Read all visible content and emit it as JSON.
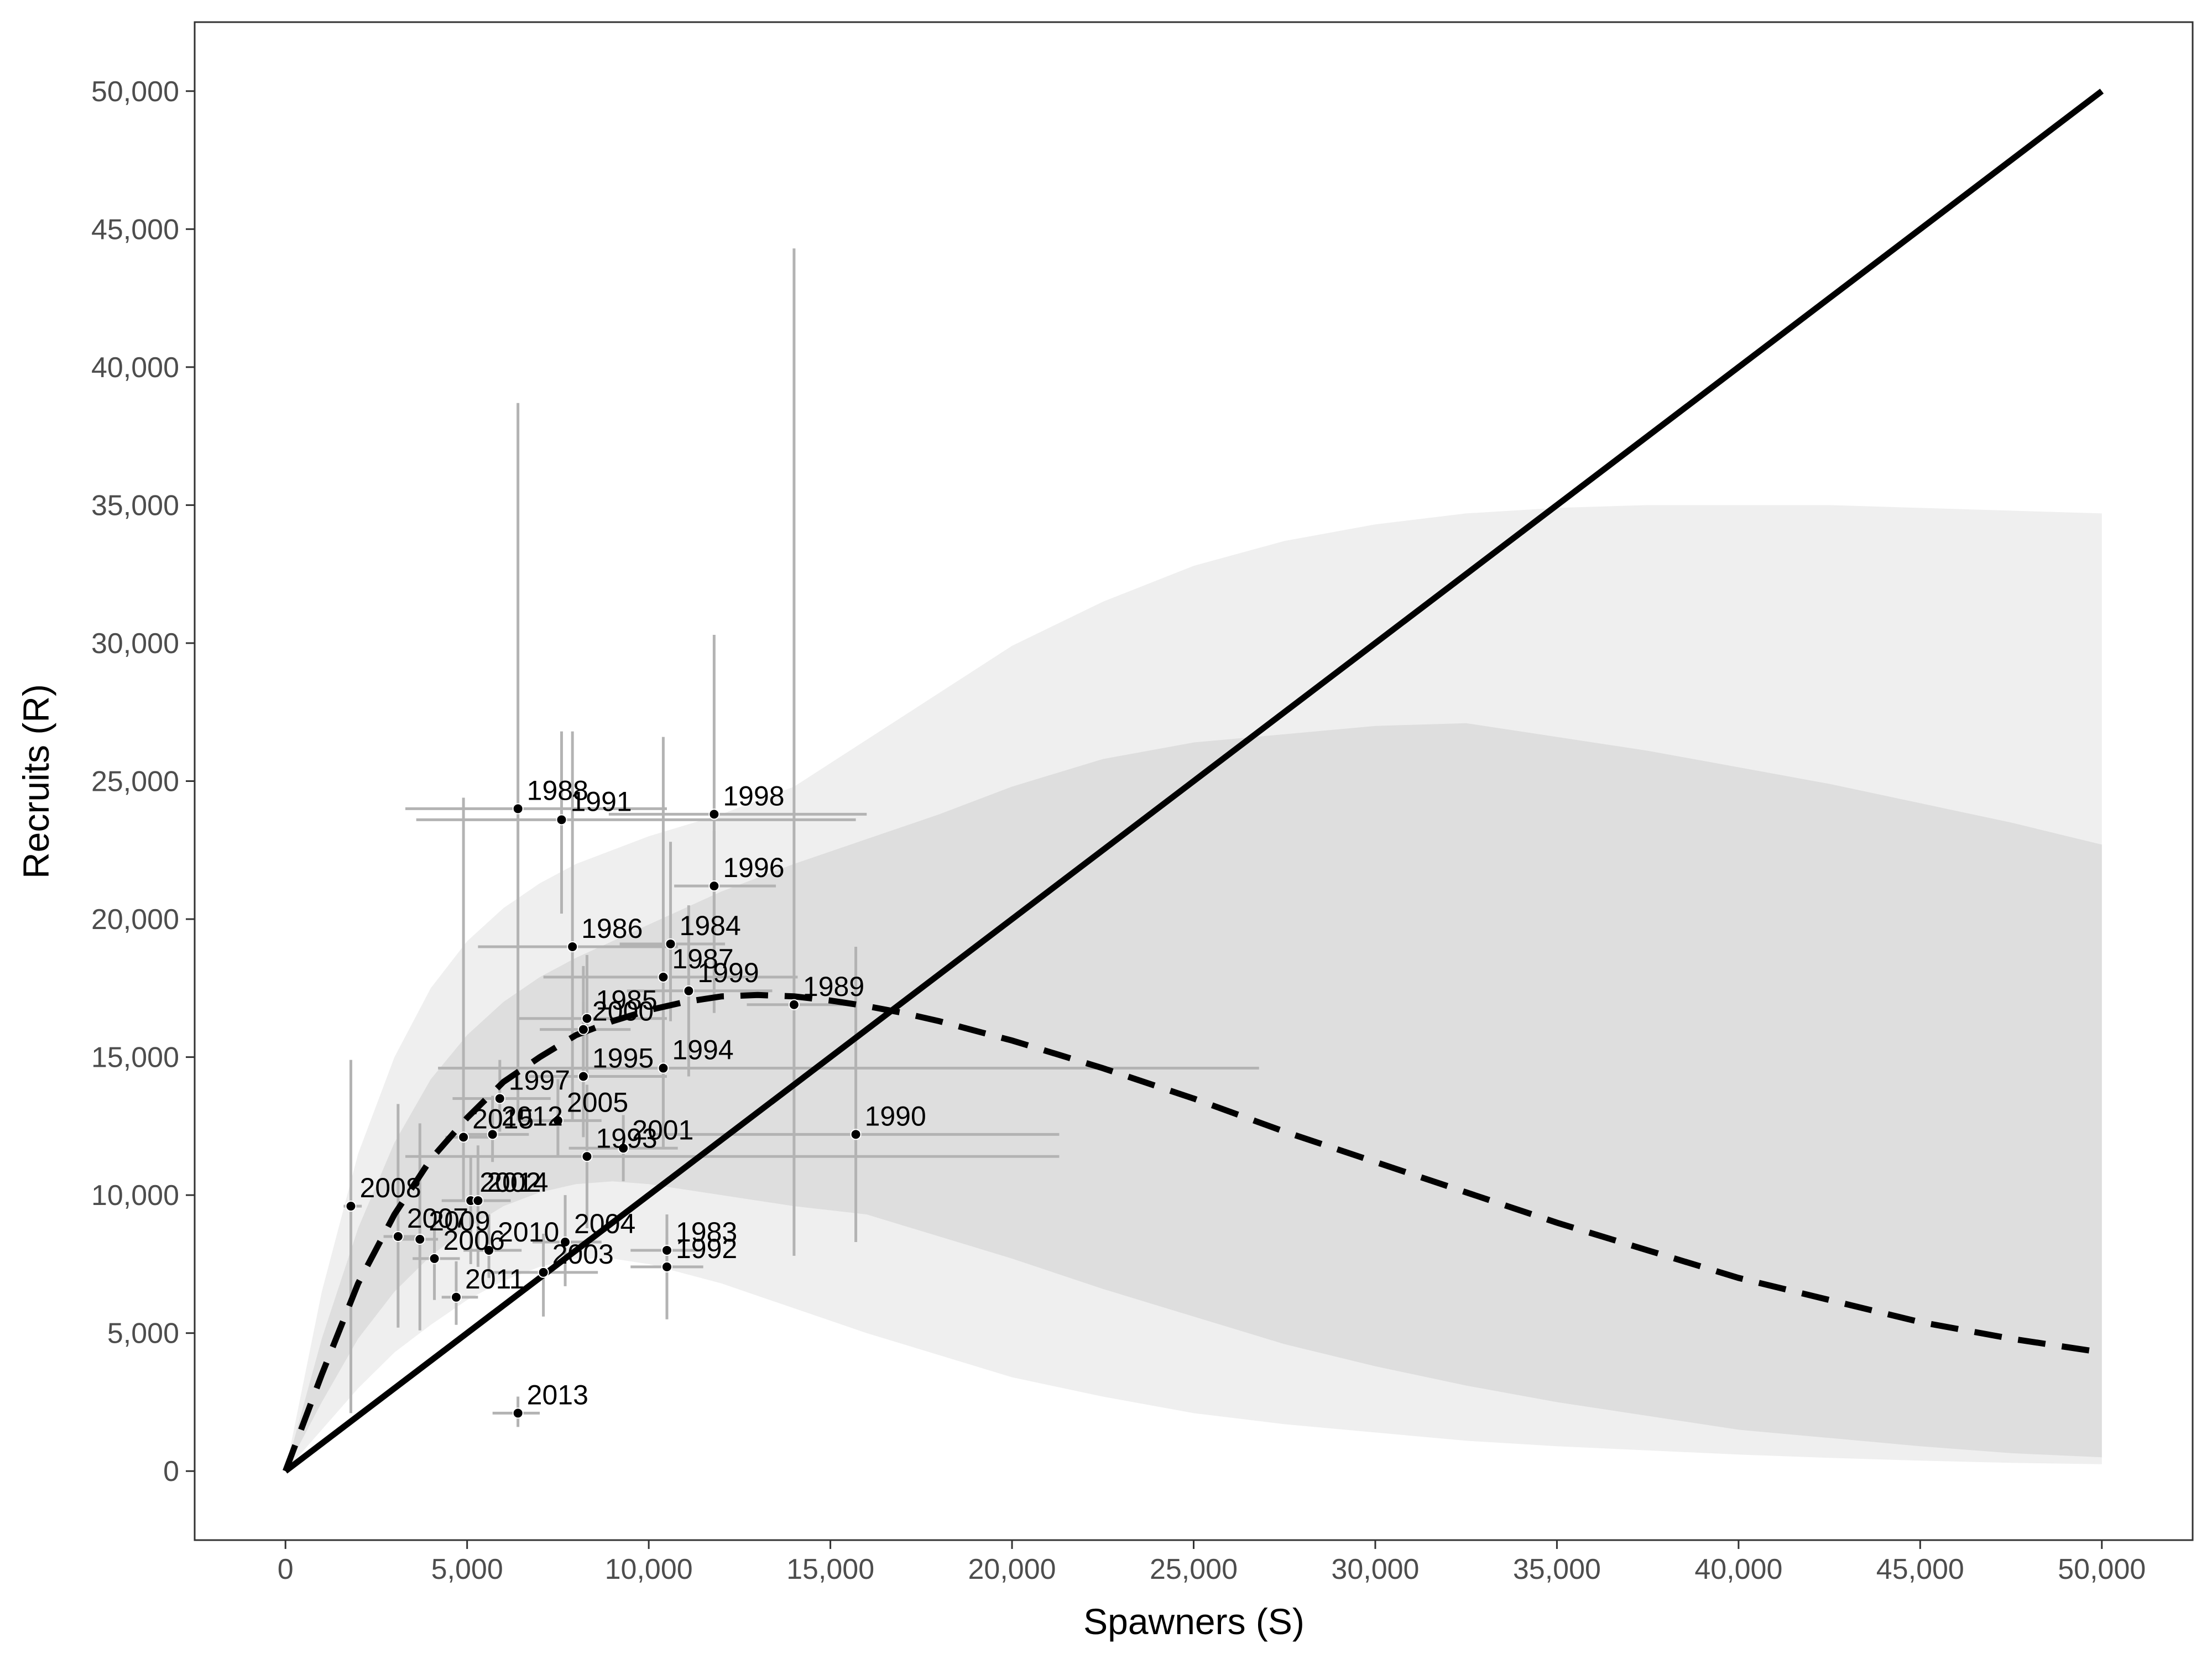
{
  "chart_data": {
    "type": "scatter",
    "title": "",
    "xlabel": "Spawners (S)",
    "ylabel": "Recruits (R)",
    "xlim": [
      -2500,
      52500
    ],
    "ylim": [
      -2500,
      52500
    ],
    "x_ticks": [
      0,
      5000,
      10000,
      15000,
      20000,
      25000,
      30000,
      35000,
      40000,
      45000,
      50000
    ],
    "x_tick_labels": [
      "0",
      "5,000",
      "10,000",
      "15,000",
      "20,000",
      "25,000",
      "30,000",
      "35,000",
      "40,000",
      "45,000",
      "50,000"
    ],
    "y_ticks": [
      0,
      5000,
      10000,
      15000,
      20000,
      25000,
      30000,
      35000,
      40000,
      45000,
      50000
    ],
    "y_tick_labels": [
      "0",
      "5,000",
      "10,000",
      "15,000",
      "20,000",
      "25,000",
      "30,000",
      "35,000",
      "40,000",
      "45,000",
      "50,000"
    ],
    "grid": false,
    "colors": {
      "outer_band": "#efefef",
      "inner_band": "#dedede",
      "error_bars": "#b3b3b3",
      "lines": "#000000",
      "points": "#000000"
    },
    "replacement_line": {
      "x": [
        0,
        50000
      ],
      "y": [
        0,
        50000
      ]
    },
    "median_curve": {
      "x": [
        0,
        1000,
        2000,
        3000,
        4000,
        5000,
        6000,
        7000,
        8000,
        9000,
        10000,
        11000,
        12000,
        13000,
        14000,
        15000,
        16000,
        17000,
        18000,
        20000,
        22500,
        25000,
        27500,
        30000,
        32500,
        35000,
        37500,
        40000,
        42500,
        45000,
        47500,
        50000
      ],
      "y": [
        0,
        3500,
        6800,
        9300,
        11300,
        12800,
        14100,
        15000,
        15800,
        16300,
        16700,
        17000,
        17200,
        17250,
        17200,
        17050,
        16850,
        16600,
        16300,
        15600,
        14600,
        13500,
        12300,
        11200,
        10100,
        9000,
        8000,
        7000,
        6200,
        5400,
        4800,
        4300
      ]
    },
    "outer_interval": {
      "x": [
        0,
        1000,
        2000,
        3000,
        4000,
        5000,
        6000,
        7000,
        8000,
        9000,
        10000,
        12000,
        14000,
        16000,
        18000,
        20000,
        22500,
        25000,
        27500,
        30000,
        32500,
        35000,
        37500,
        40000,
        42500,
        45000,
        47500,
        50000
      ],
      "lower": [
        0,
        1500,
        3000,
        4300,
        5300,
        6200,
        6900,
        7400,
        7700,
        7700,
        7500,
        6800,
        5900,
        5000,
        4200,
        3400,
        2700,
        2100,
        1700,
        1400,
        1100,
        900,
        750,
        600,
        480,
        380,
        300,
        250
      ],
      "upper": [
        0,
        6500,
        11500,
        15000,
        17500,
        19200,
        20400,
        21300,
        22000,
        22500,
        23000,
        23800,
        24800,
        26500,
        28200,
        29900,
        31500,
        32800,
        33700,
        34300,
        34700,
        34900,
        35000,
        35000,
        35000,
        34900,
        34800,
        34700
      ]
    },
    "inner_interval": {
      "x": [
        0,
        1000,
        2000,
        3000,
        4000,
        5000,
        6000,
        7000,
        8000,
        9000,
        10000,
        12000,
        14000,
        16000,
        18000,
        20000,
        22500,
        25000,
        27500,
        30000,
        32500,
        35000,
        37500,
        40000,
        42500,
        45000,
        47500,
        50000
      ],
      "lower": [
        0,
        2500,
        4800,
        6500,
        7800,
        8800,
        9600,
        10100,
        10400,
        10500,
        10400,
        10000,
        9600,
        9300,
        8500,
        7700,
        6600,
        5600,
        4600,
        3800,
        3100,
        2500,
        2000,
        1500,
        1200,
        900,
        650,
        500
      ],
      "upper": [
        0,
        4800,
        8800,
        11900,
        14200,
        15800,
        17000,
        17900,
        18600,
        19200,
        19800,
        21000,
        22000,
        22900,
        23800,
        24800,
        25800,
        26400,
        26700,
        27000,
        27100,
        26600,
        26100,
        25500,
        24900,
        24200,
        23500,
        22700
      ]
    },
    "points": [
      {
        "year": "1983",
        "x": 10500,
        "y": 8000,
        "x_lo": 9500,
        "x_hi": 11500,
        "y_lo": 7500,
        "y_hi": 8500
      },
      {
        "year": "1984",
        "x": 10600,
        "y": 19100,
        "x_lo": 9200,
        "x_hi": 12100,
        "y_lo": 16300,
        "y_hi": 22800
      },
      {
        "year": "1985",
        "x": 8300,
        "y": 16400,
        "x_lo": 6400,
        "x_hi": 10500,
        "y_lo": 14200,
        "y_hi": 18700
      },
      {
        "year": "1986",
        "x": 7900,
        "y": 19000,
        "x_lo": 5300,
        "x_hi": 10800,
        "y_lo": 12700,
        "y_hi": 26800
      },
      {
        "year": "1987",
        "x": 10400,
        "y": 17900,
        "x_lo": 7100,
        "x_hi": 14100,
        "y_lo": 11700,
        "y_hi": 26600
      },
      {
        "year": "1988",
        "x": 6400,
        "y": 24000,
        "x_lo": 3300,
        "x_hi": 10500,
        "y_lo": 12700,
        "y_hi": 38700
      },
      {
        "year": "1989",
        "x": 14000,
        "y": 16900,
        "x_lo": 12700,
        "x_hi": 15500,
        "y_lo": 7800,
        "y_hi": 44300
      },
      {
        "year": "1990",
        "x": 15700,
        "y": 12200,
        "x_lo": 10100,
        "x_hi": 21300,
        "y_lo": 8300,
        "y_hi": 19000
      },
      {
        "year": "1991",
        "x": 7600,
        "y": 23600,
        "x_lo": 3600,
        "x_hi": 15700,
        "y_lo": 20200,
        "y_hi": 26800
      },
      {
        "year": "1992",
        "x": 10500,
        "y": 7400,
        "x_lo": 9500,
        "x_hi": 11500,
        "y_lo": 5500,
        "y_hi": 9300
      },
      {
        "year": "1993",
        "x": 8300,
        "y": 11400,
        "x_lo": 3300,
        "x_hi": 21300,
        "y_lo": 8800,
        "y_hi": 14000
      },
      {
        "year": "1994",
        "x": 10400,
        "y": 14600,
        "x_lo": 4200,
        "x_hi": 26800,
        "y_lo": 12300,
        "y_hi": 17400
      },
      {
        "year": "1995",
        "x": 8200,
        "y": 14300,
        "x_lo": 6700,
        "x_hi": 10500,
        "y_lo": 12100,
        "y_hi": 17000
      },
      {
        "year": "1996",
        "x": 11800,
        "y": 21200,
        "x_lo": 10700,
        "x_hi": 13500,
        "y_lo": 19400,
        "y_hi": 23200
      },
      {
        "year": "1997",
        "x": 5900,
        "y": 13500,
        "x_lo": 4600,
        "x_hi": 7300,
        "y_lo": 12300,
        "y_hi": 14900
      },
      {
        "year": "1998",
        "x": 11800,
        "y": 23800,
        "x_lo": 8900,
        "x_hi": 16000,
        "y_lo": 16600,
        "y_hi": 30300
      },
      {
        "year": "1999",
        "x": 11100,
        "y": 17400,
        "x_lo": 9400,
        "x_hi": 13400,
        "y_lo": 14300,
        "y_hi": 20500
      },
      {
        "year": "2000",
        "x": 8200,
        "y": 16000,
        "x_lo": 7000,
        "x_hi": 9500,
        "y_lo": 13900,
        "y_hi": 18300
      },
      {
        "year": "2001",
        "x": 9300,
        "y": 11700,
        "x_lo": 7800,
        "x_hi": 10800,
        "y_lo": 10500,
        "y_hi": 12900
      },
      {
        "year": "2002",
        "x": 5100,
        "y": 9800,
        "x_lo": 4300,
        "x_hi": 5900,
        "y_lo": 7500,
        "y_hi": 11400
      },
      {
        "year": "2003",
        "x": 7100,
        "y": 7200,
        "x_lo": 5600,
        "x_hi": 8600,
        "y_lo": 5600,
        "y_hi": 8600
      },
      {
        "year": "2004",
        "x": 7700,
        "y": 8300,
        "x_lo": 6800,
        "x_hi": 8700,
        "y_lo": 6700,
        "y_hi": 10000
      },
      {
        "year": "2005",
        "x": 7500,
        "y": 12700,
        "x_lo": 6400,
        "x_hi": 8700,
        "y_lo": 11400,
        "y_hi": 14200
      },
      {
        "year": "2006",
        "x": 4100,
        "y": 7700,
        "x_lo": 3500,
        "x_hi": 4800,
        "y_lo": 6200,
        "y_hi": 9200
      },
      {
        "year": "2007",
        "x": 3100,
        "y": 8500,
        "x_lo": 2700,
        "x_hi": 3600,
        "y_lo": 5200,
        "y_hi": 13300
      },
      {
        "year": "2008",
        "x": 1800,
        "y": 9600,
        "x_lo": 1600,
        "x_hi": 2100,
        "y_lo": 2100,
        "y_hi": 14900
      },
      {
        "year": "2009",
        "x": 3700,
        "y": 8400,
        "x_lo": 3200,
        "x_hi": 4200,
        "y_lo": 5100,
        "y_hi": 12600
      },
      {
        "year": "2010",
        "x": 5600,
        "y": 8000,
        "x_lo": 4900,
        "x_hi": 6500,
        "y_lo": 7000,
        "y_hi": 9300
      },
      {
        "year": "2011",
        "x": 4700,
        "y": 6300,
        "x_lo": 4300,
        "x_hi": 5300,
        "y_lo": 5300,
        "y_hi": 7600
      },
      {
        "year": "2012",
        "x": 5700,
        "y": 12200,
        "x_lo": 4900,
        "x_hi": 6700,
        "y_lo": 11200,
        "y_hi": 13600
      },
      {
        "year": "2013",
        "x": 6400,
        "y": 2100,
        "x_lo": 5700,
        "x_hi": 7000,
        "y_lo": 1600,
        "y_hi": 2700
      },
      {
        "year": "2014",
        "x": 5300,
        "y": 9800,
        "x_lo": 4500,
        "x_hi": 6200,
        "y_lo": 7400,
        "y_hi": 11800
      },
      {
        "year": "2015",
        "x": 4900,
        "y": 12100,
        "x_lo": 4400,
        "x_hi": 5600,
        "y_lo": 9800,
        "y_hi": 24400
      }
    ]
  }
}
